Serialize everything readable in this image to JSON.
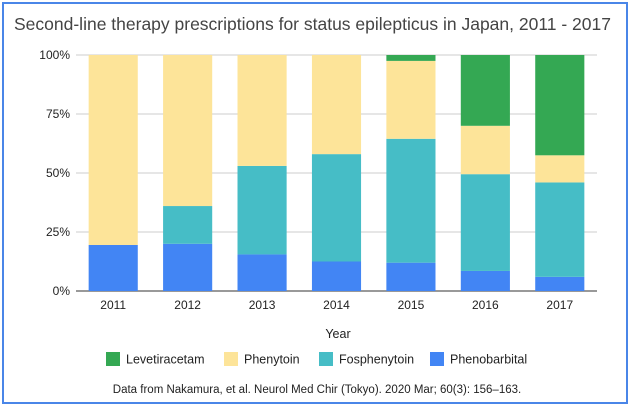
{
  "chart_data": {
    "type": "bar",
    "stacked": true,
    "percent": true,
    "title": "Second-line therapy prescriptions for status epilepticus in Japan, 2011 - 2017",
    "xlabel": "Year",
    "ylabel": "",
    "ylim": [
      0,
      100
    ],
    "yticks": [
      "0%",
      "25%",
      "50%",
      "75%",
      "100%"
    ],
    "grid": true,
    "legend_position": "bottom",
    "categories": [
      "2011",
      "2012",
      "2013",
      "2014",
      "2015",
      "2016",
      "2017"
    ],
    "series": [
      {
        "name": "Phenobarbital",
        "color": "#4285f4",
        "values": [
          19.5,
          20,
          15.5,
          12.5,
          12,
          8.5,
          6
        ]
      },
      {
        "name": "Fosphenytoin",
        "color": "#46bdc6",
        "values": [
          0,
          16,
          37.5,
          45.5,
          52.5,
          41,
          40
        ]
      },
      {
        "name": "Phenytoin",
        "color": "#fde499",
        "values": [
          80.5,
          64,
          47,
          42,
          33,
          20.5,
          11.5
        ]
      },
      {
        "name": "Levetiracetam",
        "color": "#34a853",
        "values": [
          0,
          0,
          0,
          0,
          2.5,
          30,
          42.5
        ]
      }
    ],
    "legend_order": [
      "Levetiracetam",
      "Phenytoin",
      "Fosphenytoin",
      "Phenobarbital"
    ],
    "source": "Data from Nakamura, et al. Neurol Med Chir (Tokyo). 2020 Mar; 60(3): 156–163."
  }
}
